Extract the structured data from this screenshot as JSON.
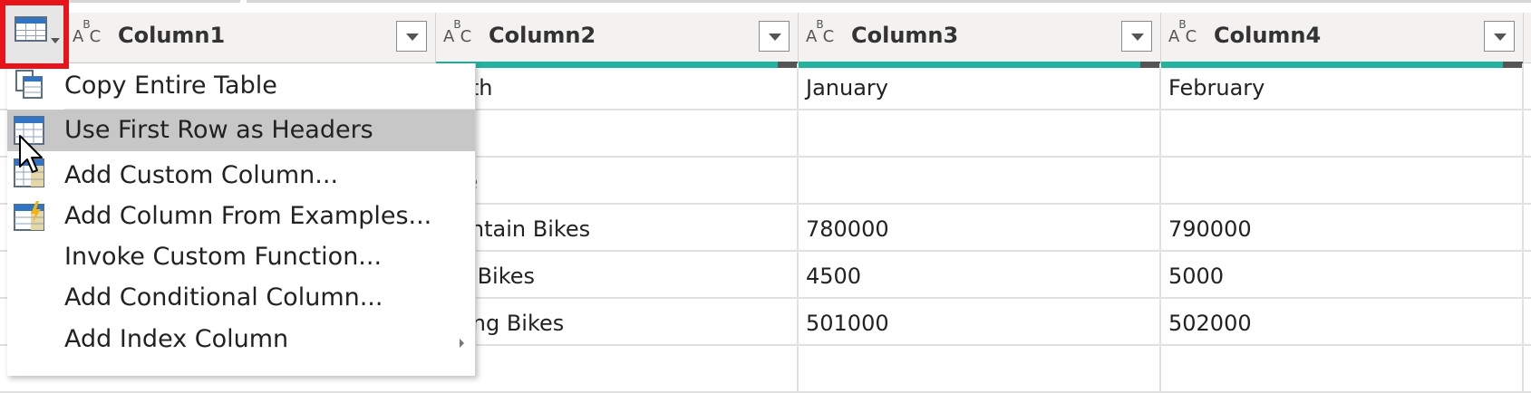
{
  "columns": [
    {
      "name": "Column1",
      "type_glyph": "ABC"
    },
    {
      "name": "Column2",
      "type_glyph": "ABC"
    },
    {
      "name": "Column3",
      "type_glyph": "ABC"
    },
    {
      "name": "Column4",
      "type_glyph": "ABC"
    }
  ],
  "rows": [
    [
      "",
      "onth",
      "January",
      "February"
    ],
    [
      "",
      "",
      "",
      ""
    ],
    [
      "",
      "me",
      "",
      ""
    ],
    [
      "",
      "ountain Bikes",
      "780000",
      "790000"
    ],
    [
      "",
      "ad Bikes",
      "4500",
      "5000"
    ],
    [
      "",
      "uring Bikes",
      "501000",
      "502000"
    ]
  ],
  "menu": {
    "items": [
      {
        "label": "Copy Entire Table",
        "icon": "copy-table-icon"
      },
      {
        "label": "Use First Row as Headers",
        "icon": "use-first-row-headers-icon",
        "selected": true
      },
      {
        "label": "Add Custom Column...",
        "icon": "custom-column-icon"
      },
      {
        "label": "Add Column From Examples...",
        "icon": "column-from-examples-icon"
      },
      {
        "label": "Invoke Custom Function...",
        "icon": ""
      },
      {
        "label": "Add Conditional Column...",
        "icon": ""
      },
      {
        "label": "Add Index Column",
        "icon": "",
        "has_submenu": true
      }
    ]
  },
  "colors": {
    "highlight_border": "#e8141b",
    "quality_bar": "#1fb3a0",
    "menu_selected": "#c7c7c7",
    "header_bg": "#f3f2f1"
  }
}
